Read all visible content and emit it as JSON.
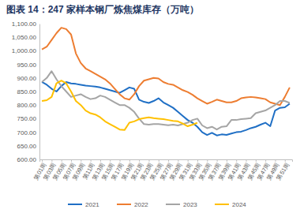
{
  "chart_data": {
    "type": "line",
    "title": "图表 14：247 家样本钢厂炼焦煤库存（万吨）",
    "categories": [
      "第01周",
      null,
      "第03周",
      null,
      "第05周",
      null,
      "第07周",
      null,
      "第09周",
      null,
      "第11周",
      null,
      "第13周",
      null,
      "第15周",
      null,
      "第17周",
      null,
      "第19周",
      null,
      "第21周",
      null,
      "第23周",
      null,
      "第25周",
      null,
      "第27周",
      null,
      "第29周",
      null,
      "第31周",
      null,
      "第33周",
      null,
      "第35周",
      null,
      "第37周",
      null,
      "第39周",
      null,
      "第41周",
      null,
      "第43周",
      null,
      "第45周",
      null,
      "第47周",
      null,
      "第49周",
      null,
      "第51周",
      null
    ],
    "series": [
      {
        "name": "2021",
        "color": "#1f6fc5",
        "values": [
          885,
          875,
          860,
          850,
          870,
          885,
          880,
          878,
          875,
          872,
          870,
          868,
          865,
          860,
          855,
          850,
          845,
          855,
          865,
          860,
          820,
          812,
          808,
          815,
          825,
          810,
          800,
          790,
          775,
          760,
          745,
          735,
          720,
          700,
          690,
          698,
          688,
          692,
          690,
          695,
          700,
          702,
          708,
          715,
          720,
          728,
          735,
          722,
          780,
          790,
          792,
          805
        ]
      },
      {
        "name": "2022",
        "color": "#ed7d31",
        "values": [
          1005,
          1015,
          1040,
          1065,
          1085,
          1080,
          1060,
          990,
          955,
          935,
          925,
          915,
          905,
          895,
          880,
          860,
          840,
          825,
          820,
          840,
          870,
          890,
          895,
          900,
          898,
          885,
          878,
          875,
          865,
          855,
          848,
          838,
          825,
          815,
          805,
          812,
          820,
          815,
          810,
          810,
          815,
          825,
          828,
          830,
          828,
          825,
          822,
          810,
          805,
          800,
          830,
          865
        ]
      },
      {
        "name": "2023",
        "color": "#a5a5a5",
        "values": [
          885,
          900,
          925,
          895,
          870,
          850,
          830,
          835,
          840,
          830,
          822,
          825,
          835,
          830,
          820,
          810,
          800,
          800,
          790,
          775,
          750,
          730,
          728,
          730,
          730,
          728,
          726,
          728,
          725,
          730,
          735,
          745,
          750,
          725,
          715,
          720,
          710,
          720,
          722,
          745,
          745,
          748,
          750,
          752,
          770,
          775,
          780,
          790,
          800,
          815,
          815,
          808
        ]
      },
      {
        "name": "2024",
        "color": "#ffc000",
        "values": [
          815,
          818,
          830,
          880,
          890,
          880,
          850,
          815,
          800,
          780,
          770,
          765,
          755,
          740,
          730,
          720,
          710,
          708,
          735,
          740,
          748,
          752,
          755,
          752,
          750,
          748,
          745,
          742,
          740,
          732,
          722,
          728,
          735,
          null,
          null,
          null,
          null,
          null,
          null,
          null,
          null,
          null,
          null,
          null,
          null,
          null,
          null,
          null,
          null,
          null,
          null,
          null
        ]
      }
    ],
    "ylim": [
      600,
      1100
    ],
    "yticks": [
      {
        "value": 600,
        "label": "600.00"
      },
      {
        "value": 650,
        "label": "650.00"
      },
      {
        "value": 700,
        "label": "700.00"
      },
      {
        "value": 750,
        "label": "750.00"
      },
      {
        "value": 800,
        "label": "800.00"
      },
      {
        "value": 850,
        "label": "850.00"
      },
      {
        "value": 900,
        "label": "900.00"
      },
      {
        "value": 950,
        "label": "950.00"
      },
      {
        "value": 1000,
        "label": "1,000.00"
      },
      {
        "value": 1050,
        "label": "1,050.00"
      },
      {
        "value": 1100,
        "label": "1,100.00"
      }
    ],
    "grid": false,
    "legend": "bottom"
  }
}
